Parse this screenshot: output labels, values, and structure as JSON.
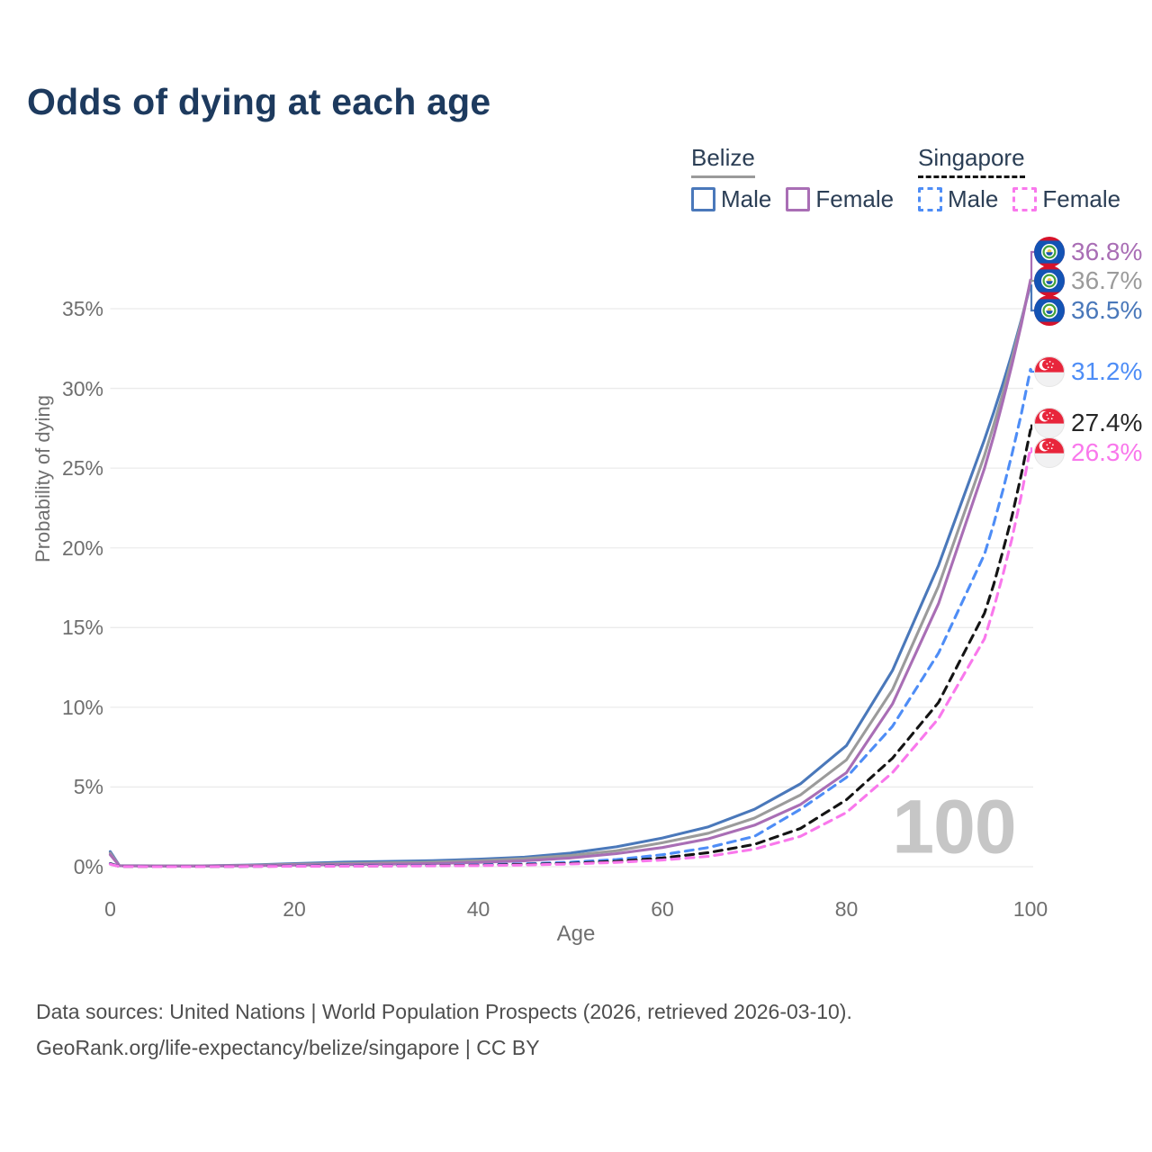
{
  "title": "Odds of dying at each age",
  "legend": {
    "groups": [
      {
        "country": "Belize",
        "line_style": "solid",
        "underline_color": "#9a9a9a",
        "items": [
          {
            "label": "Male",
            "color": "#4a78ba"
          },
          {
            "label": "Female",
            "color": "#a96eb5"
          }
        ]
      },
      {
        "country": "Singapore",
        "line_style": "dashed",
        "underline_color": "#141414",
        "items": [
          {
            "label": "Male",
            "color": "#4e8df6"
          },
          {
            "label": "Female",
            "color": "#f978ec"
          }
        ]
      }
    ]
  },
  "colors": {
    "title_text": "#1d3a5e",
    "axis_text": "#6f6f6f",
    "gridline": "#ebebeb",
    "watermark": "#c6c6c6",
    "footer_text": "#4e4e4e",
    "belize_male": "#4a78ba",
    "belize_average": "#9b9b9b",
    "belize_female": "#a96eb5",
    "singapore_male": "#4e8df6",
    "singapore_average": "#141414",
    "singapore_female": "#f978ec"
  },
  "chart_data": {
    "type": "line",
    "title": "Odds of dying at each age",
    "xlabel": "Age",
    "ylabel": "Probability of dying",
    "xlim": [
      0,
      100
    ],
    "ylim_pct": [
      0,
      38.5
    ],
    "grid": "horizontal-only",
    "legend_position": "top-right",
    "watermark": "100",
    "x_ticks": [
      "0",
      "20",
      "40",
      "60",
      "80",
      "100"
    ],
    "x_tick_values": [
      0,
      20,
      40,
      60,
      80,
      100
    ],
    "y_ticks": [
      "0%",
      "5%",
      "10%",
      "15%",
      "20%",
      "25%",
      "30%",
      "35%"
    ],
    "y_tick_values": [
      0,
      5,
      10,
      15,
      20,
      25,
      30,
      35
    ],
    "x": [
      0,
      1,
      5,
      10,
      15,
      20,
      25,
      30,
      35,
      40,
      45,
      50,
      55,
      60,
      65,
      70,
      75,
      80,
      85,
      90,
      95,
      96,
      97,
      98,
      99,
      100
    ],
    "series": [
      {
        "name": "belize-male",
        "country": "Belize",
        "sex": "Male",
        "style": "solid",
        "color": "#4a78ba",
        "values_pct": [
          0.95,
          0.07,
          0.05,
          0.05,
          0.1,
          0.2,
          0.28,
          0.33,
          0.38,
          0.47,
          0.6,
          0.85,
          1.25,
          1.8,
          2.5,
          3.6,
          5.2,
          7.6,
          12.3,
          18.9,
          26.8,
          28.5,
          30.3,
          32.2,
          34.3,
          36.5
        ]
      },
      {
        "name": "belize-average",
        "country": "Belize",
        "sex": "Both sexes",
        "style": "solid",
        "color": "#9b9b9b",
        "values_pct": [
          0.85,
          0.06,
          0.045,
          0.045,
          0.08,
          0.15,
          0.2,
          0.24,
          0.29,
          0.37,
          0.5,
          0.7,
          1.0,
          1.5,
          2.1,
          3.05,
          4.5,
          6.7,
          11.1,
          17.6,
          25.8,
          27.7,
          29.7,
          31.9,
          34.2,
          36.7
        ]
      },
      {
        "name": "belize-female",
        "country": "Belize",
        "sex": "Female",
        "style": "solid",
        "color": "#a96eb5",
        "values_pct": [
          0.75,
          0.055,
          0.04,
          0.04,
          0.06,
          0.1,
          0.13,
          0.16,
          0.2,
          0.27,
          0.37,
          0.55,
          0.82,
          1.2,
          1.75,
          2.6,
          3.9,
          5.9,
          10.2,
          16.5,
          25.0,
          27.0,
          29.2,
          31.5,
          34.0,
          36.8
        ]
      },
      {
        "name": "singapore-male",
        "country": "Singapore",
        "sex": "Male",
        "style": "dashed",
        "color": "#4e8df6",
        "values_pct": [
          0.2,
          0.02,
          0.01,
          0.01,
          0.025,
          0.045,
          0.055,
          0.065,
          0.085,
          0.12,
          0.18,
          0.28,
          0.45,
          0.75,
          1.2,
          1.9,
          3.6,
          5.6,
          8.8,
          13.4,
          19.6,
          21.5,
          23.6,
          25.9,
          28.4,
          31.2
        ]
      },
      {
        "name": "singapore-average",
        "country": "Singapore",
        "sex": "Both sexes",
        "style": "dashed",
        "color": "#141414",
        "values_pct": [
          0.18,
          0.017,
          0.009,
          0.009,
          0.02,
          0.032,
          0.04,
          0.05,
          0.065,
          0.09,
          0.14,
          0.21,
          0.34,
          0.55,
          0.88,
          1.4,
          2.4,
          4.2,
          6.8,
          10.3,
          15.9,
          17.7,
          19.8,
          22.0,
          24.6,
          27.4
        ]
      },
      {
        "name": "singapore-female",
        "country": "Singapore",
        "sex": "Female",
        "style": "dashed",
        "color": "#f978ec",
        "values_pct": [
          0.16,
          0.014,
          0.008,
          0.008,
          0.015,
          0.022,
          0.03,
          0.04,
          0.05,
          0.07,
          0.11,
          0.17,
          0.27,
          0.42,
          0.65,
          1.1,
          1.9,
          3.4,
          5.9,
          9.3,
          14.3,
          16.2,
          18.3,
          20.6,
          23.3,
          26.3
        ]
      }
    ],
    "end_labels": [
      {
        "text": "36.8%",
        "value_pct": 36.8,
        "series": "belize-female",
        "flag": "belize",
        "color": "#a96eb5"
      },
      {
        "text": "36.7%",
        "value_pct": 36.7,
        "series": "belize-average",
        "flag": "belize",
        "color": "#9b9b9b"
      },
      {
        "text": "36.5%",
        "value_pct": 36.5,
        "series": "belize-male",
        "flag": "belize",
        "color": "#4a78ba"
      },
      {
        "text": "31.2%",
        "value_pct": 31.2,
        "series": "singapore-male",
        "flag": "singapore",
        "color": "#4e8df6"
      },
      {
        "text": "27.4%",
        "value_pct": 27.4,
        "series": "singapore-average",
        "flag": "singapore",
        "color": "#262626"
      },
      {
        "text": "26.3%",
        "value_pct": 26.3,
        "series": "singapore-female",
        "flag": "singapore",
        "color": "#f978ec"
      }
    ]
  },
  "footer": {
    "line1": "Data sources: United Nations | World Population Prospects (2026, retrieved 2026-03-10).",
    "line2": "GeoRank.org/life-expectancy/belize/singapore | CC BY"
  }
}
